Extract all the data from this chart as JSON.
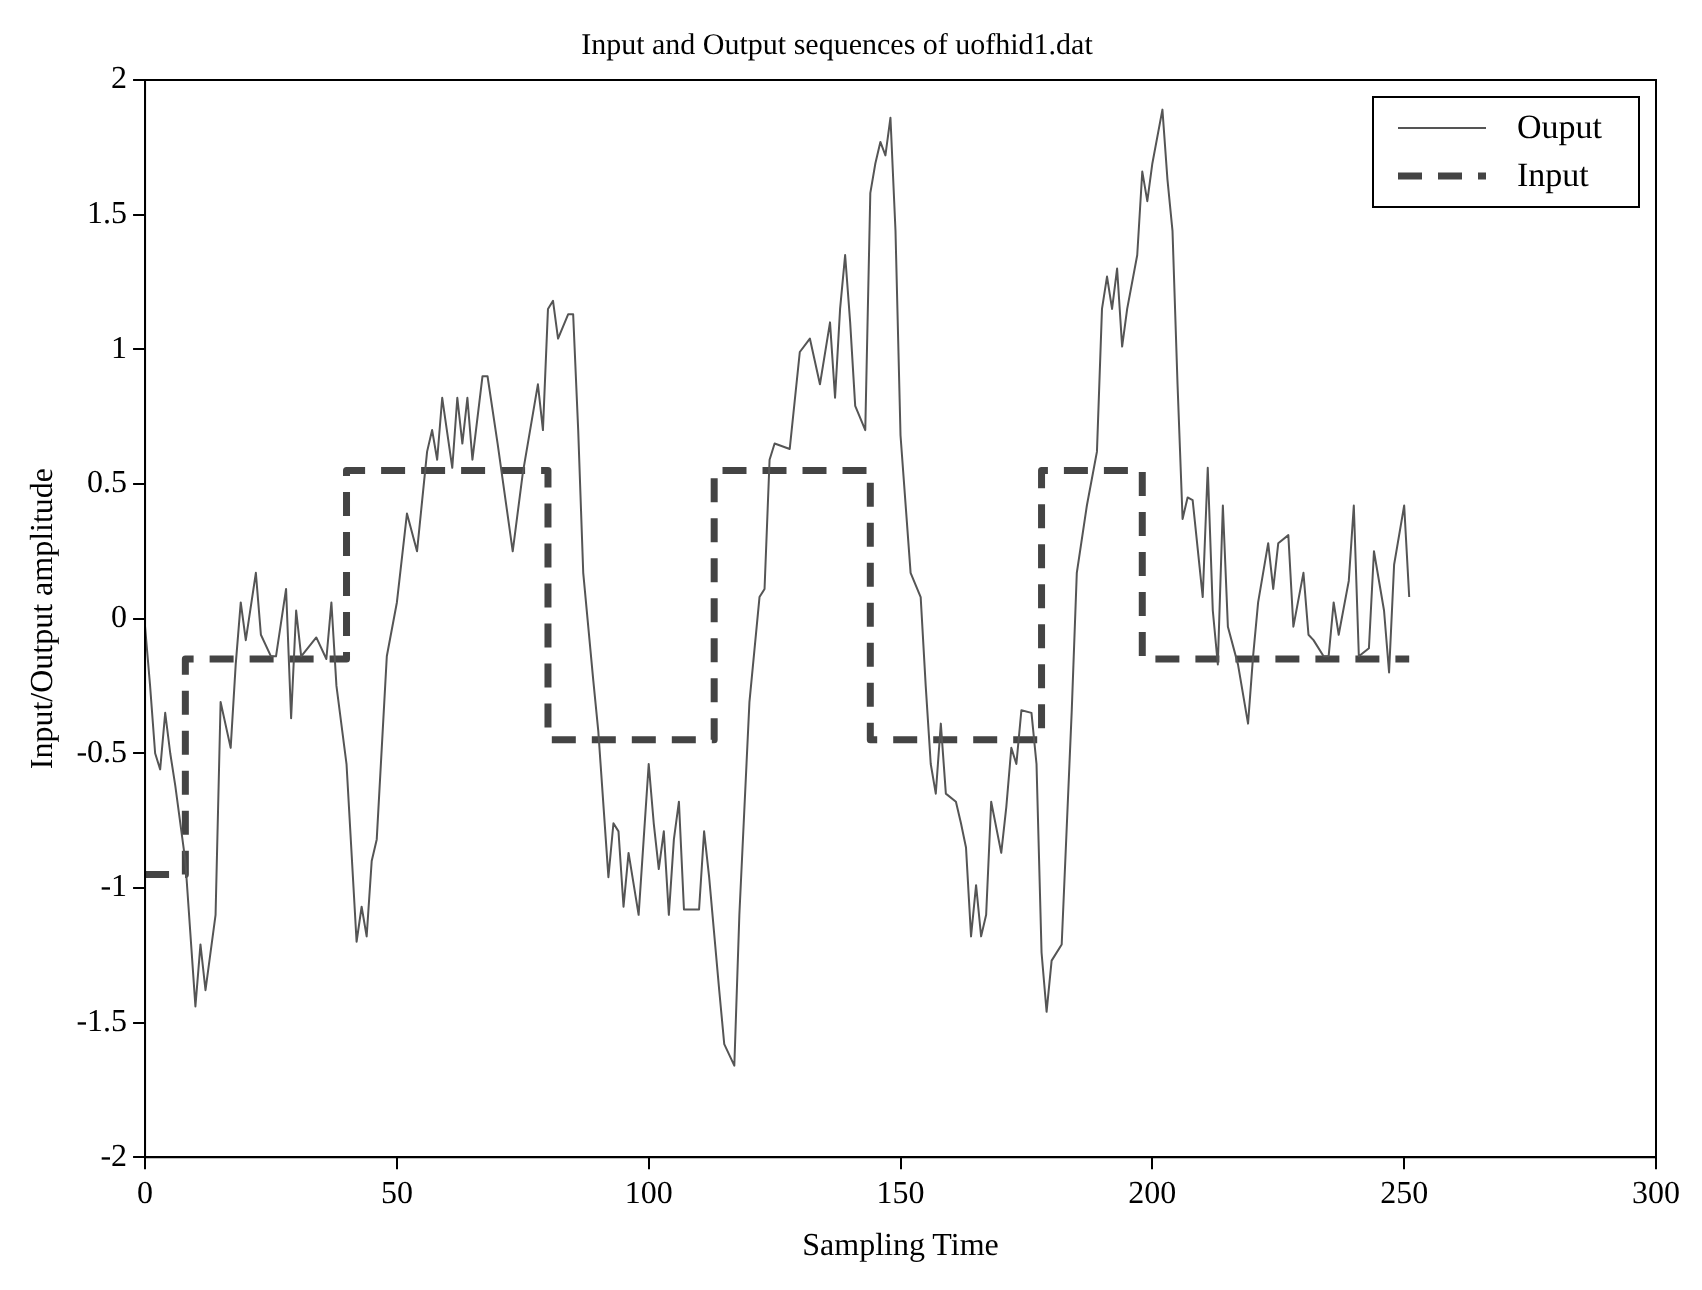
{
  "chart_data": {
    "type": "line",
    "title": "Input and Output sequences of uofhid1.dat",
    "xlabel": "Sampling Time",
    "ylabel": "Input/Output amplitude",
    "xlim": [
      0,
      300
    ],
    "xticks": [
      0,
      50,
      100,
      150,
      200,
      250,
      300
    ],
    "ylim": [
      -2,
      2
    ],
    "yticks": [
      -2,
      -1.5,
      -1,
      -0.5,
      0,
      0.5,
      1,
      1.5,
      2
    ],
    "legend": "top right",
    "grid": false,
    "series": [
      {
        "name": "Ouput",
        "type": "line",
        "color": "#555555",
        "line_style": "solid",
        "x": [
          0,
          1,
          2,
          3,
          4,
          5,
          6,
          8,
          10,
          11,
          12,
          14,
          15,
          17,
          18,
          19,
          20,
          22,
          23,
          25,
          26,
          28,
          29,
          30,
          31,
          34,
          36,
          37,
          38,
          40,
          42,
          43,
          44,
          45,
          46,
          48,
          50,
          52,
          54,
          56,
          57,
          58,
          59,
          61,
          62,
          63,
          64,
          65,
          67,
          68,
          70,
          73,
          75,
          78,
          79,
          80,
          81,
          82,
          84,
          85,
          86,
          87,
          89,
          90,
          92,
          93,
          94,
          95,
          96,
          98,
          99,
          100,
          101,
          102,
          103,
          104,
          105,
          106,
          107,
          110,
          111,
          112,
          114,
          115,
          117,
          118,
          120,
          122,
          123,
          124,
          125,
          128,
          130,
          132,
          134,
          136,
          137,
          138,
          139,
          140,
          141,
          143,
          144,
          145,
          146,
          147,
          148,
          149,
          150,
          152,
          154,
          155,
          156,
          157,
          158,
          159,
          161,
          162,
          163,
          164,
          165,
          166,
          167,
          168,
          170,
          171,
          172,
          173,
          174,
          176,
          177,
          178,
          179,
          180,
          182,
          184,
          185,
          187,
          189,
          190,
          191,
          192,
          193,
          194,
          195,
          197,
          198,
          199,
          200,
          202,
          203,
          204,
          205,
          206,
          207,
          208,
          210,
          211,
          212,
          213,
          214,
          215,
          217,
          219,
          220,
          221,
          223,
          224,
          225,
          227,
          228,
          230,
          231,
          232,
          234,
          235,
          236,
          237,
          239,
          240,
          241,
          243,
          244,
          246,
          247,
          248,
          250,
          251
        ],
        "values": [
          -0.03,
          -0.25,
          -0.5,
          -0.56,
          -0.35,
          -0.5,
          -0.62,
          -0.9,
          -1.44,
          -1.21,
          -1.38,
          -1.1,
          -0.31,
          -0.48,
          -0.17,
          0.06,
          -0.08,
          0.17,
          -0.06,
          -0.14,
          -0.14,
          0.11,
          -0.37,
          0.03,
          -0.14,
          -0.07,
          -0.15,
          0.06,
          -0.25,
          -0.54,
          -1.2,
          -1.07,
          -1.18,
          -0.9,
          -0.82,
          -0.14,
          0.06,
          0.39,
          0.25,
          0.62,
          0.7,
          0.59,
          0.82,
          0.56,
          0.82,
          0.65,
          0.82,
          0.59,
          0.9,
          0.9,
          0.65,
          0.25,
          0.54,
          0.87,
          0.7,
          1.15,
          1.18,
          1.04,
          1.13,
          1.13,
          0.7,
          0.17,
          -0.23,
          -0.42,
          -0.96,
          -0.76,
          -0.79,
          -1.07,
          -0.87,
          -1.1,
          -0.82,
          -0.54,
          -0.76,
          -0.93,
          -0.79,
          -1.1,
          -0.82,
          -0.68,
          -1.08,
          -1.08,
          -0.79,
          -0.96,
          -1.38,
          -1.58,
          -1.66,
          -1.1,
          -0.31,
          0.08,
          0.11,
          0.59,
          0.65,
          0.63,
          0.99,
          1.04,
          0.87,
          1.1,
          0.82,
          1.15,
          1.35,
          1.1,
          0.79,
          0.7,
          1.58,
          1.69,
          1.77,
          1.72,
          1.86,
          1.44,
          0.68,
          0.17,
          0.08,
          -0.25,
          -0.54,
          -0.65,
          -0.39,
          -0.65,
          -0.68,
          -0.76,
          -0.85,
          -1.18,
          -0.99,
          -1.18,
          -1.1,
          -0.68,
          -0.87,
          -0.7,
          -0.48,
          -0.54,
          -0.34,
          -0.35,
          -0.54,
          -1.24,
          -1.46,
          -1.27,
          -1.21,
          -0.34,
          0.17,
          0.42,
          0.62,
          1.15,
          1.27,
          1.15,
          1.3,
          1.01,
          1.15,
          1.35,
          1.66,
          1.55,
          1.69,
          1.89,
          1.63,
          1.44,
          0.87,
          0.37,
          0.45,
          0.44,
          0.08,
          0.56,
          0.03,
          -0.17,
          0.42,
          -0.03,
          -0.17,
          -0.39,
          -0.14,
          0.06,
          0.28,
          0.11,
          0.28,
          0.31,
          -0.03,
          0.17,
          -0.06,
          -0.08,
          -0.14,
          -0.14,
          0.06,
          -0.06,
          0.14,
          0.42,
          -0.14,
          -0.11,
          0.25,
          0.03,
          -0.2,
          0.2,
          0.42,
          0.08
        ]
      },
      {
        "name": "Input",
        "type": "step",
        "color": "#444444",
        "line_style": "dashed",
        "x": [
          0,
          8,
          40,
          80,
          113,
          144,
          178,
          198,
          251
        ],
        "values": [
          -0.95,
          -0.15,
          0.55,
          -0.45,
          0.55,
          -0.45,
          0.55,
          -0.15,
          -0.15
        ]
      }
    ]
  }
}
